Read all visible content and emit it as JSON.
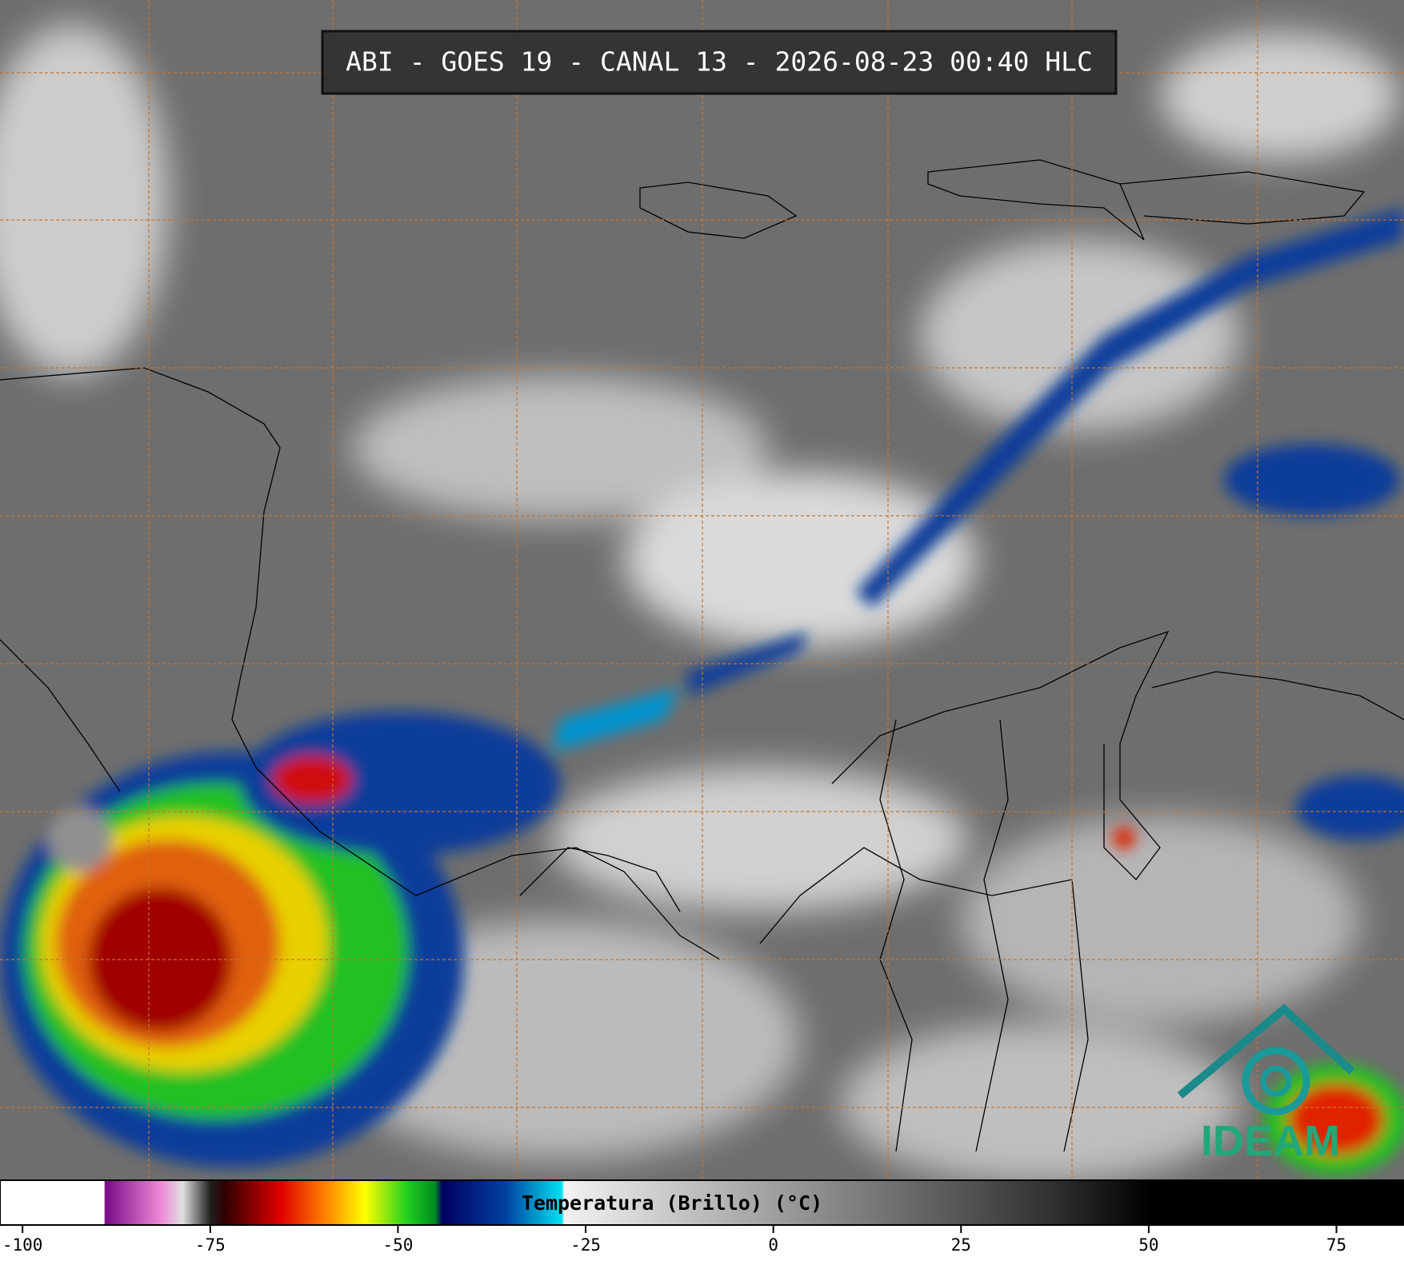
{
  "title": "ABI - GOES 19 - CANAL 13 - 2026-08-23 00:40 HLC",
  "colorbar": {
    "label": "Temperatura (Brillo) (°C)",
    "range": [
      -103,
      84
    ],
    "ticks": [
      -100,
      -75,
      -50,
      -25,
      0,
      25,
      50,
      75
    ]
  },
  "logo": {
    "text": "IDEAM"
  }
}
